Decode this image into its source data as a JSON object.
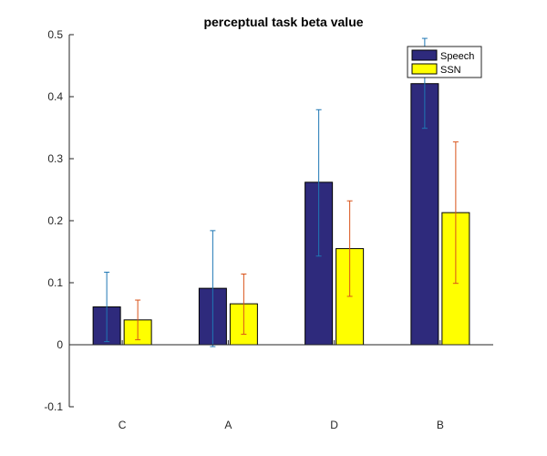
{
  "chart_data": {
    "type": "bar",
    "title": "perceptual task beta value",
    "xlabel": "",
    "ylabel": "",
    "categories": [
      "C",
      "A",
      "D",
      "B"
    ],
    "ylim": [
      -0.1,
      0.5
    ],
    "yticks": [
      "-0.1",
      "0",
      "0.1",
      "0.2",
      "0.3",
      "0.4",
      "0.5"
    ],
    "grid": false,
    "legend_position": "top-right",
    "series": [
      {
        "name": "Speech",
        "color": "#2e2a7c",
        "error_color": "#1f77b4",
        "values": [
          0.061,
          0.091,
          0.262,
          0.421
        ],
        "err_low": [
          0.005,
          -0.003,
          0.143,
          0.349
        ],
        "err_high": [
          0.117,
          0.184,
          0.379,
          0.494
        ]
      },
      {
        "name": "SSN",
        "color": "#ffff00",
        "error_color": "#d95319",
        "values": [
          0.04,
          0.066,
          0.155,
          0.213
        ],
        "err_low": [
          0.008,
          0.017,
          0.078,
          0.099
        ],
        "err_high": [
          0.072,
          0.114,
          0.232,
          0.327
        ]
      }
    ]
  }
}
